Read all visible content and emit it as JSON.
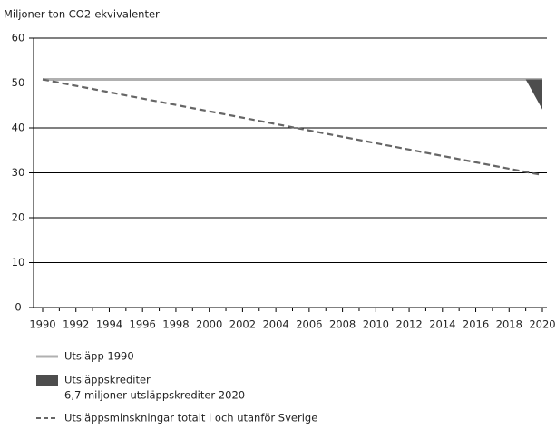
{
  "chart_data": {
    "type": "line",
    "ylabel": "Miljoner ton CO2-ekvivalenter",
    "xlim": [
      1990,
      2020
    ],
    "xticks": [
      1990,
      1992,
      1994,
      1996,
      1998,
      2000,
      2002,
      2004,
      2006,
      2008,
      2010,
      2012,
      2014,
      2016,
      2018,
      2020
    ],
    "ylim": [
      0,
      60
    ],
    "yticks": [
      0,
      10,
      20,
      30,
      40,
      50,
      60
    ],
    "grid": true,
    "series": [
      {
        "name": "Utsläpp 1990",
        "color": "#b0b0b0",
        "x": [
          1990,
          2020
        ],
        "values": [
          50.8,
          50.8
        ]
      },
      {
        "name": "Utsläppskrediter",
        "description": "6,7 miljoner utsläppskrediter 2020",
        "color": "#4d4d4d",
        "kind": "area",
        "x": [
          2019,
          2020
        ],
        "base": [
          50.8,
          50.8
        ],
        "values": [
          50.8,
          44.1
        ]
      },
      {
        "name": "Utsläppsminskningar totalt i och utanför Sverige",
        "color": "#666666",
        "dashed": true,
        "x": [
          1990,
          2020
        ],
        "values": [
          50.8,
          29.5
        ]
      }
    ]
  }
}
